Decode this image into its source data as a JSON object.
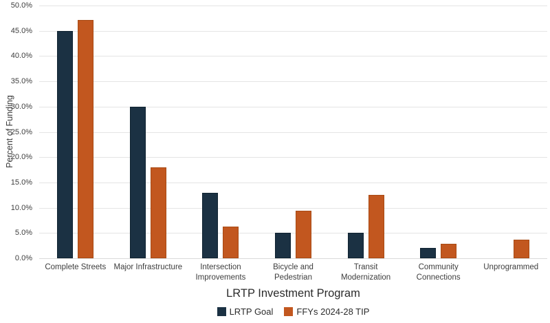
{
  "chart_data": {
    "type": "bar",
    "title": "",
    "xlabel": "LRTP Investment Program",
    "ylabel": "Percent of Funding",
    "ylim": [
      0,
      50
    ],
    "ytick_step": 5,
    "ytick_suffix": "%",
    "grid": "horizontal",
    "legend_position": "bottom",
    "categories": [
      "Complete Streets",
      "Major Infrastructure",
      "Intersection Improvements",
      "Bicycle and Pedestrian",
      "Transit Modernization",
      "Community Connections",
      "Unprogrammed"
    ],
    "category_label_lines": [
      [
        "Complete Streets"
      ],
      [
        "Major Infrastructure"
      ],
      [
        "Intersection",
        "Improvements"
      ],
      [
        "Bicycle and",
        "Pedestrian"
      ],
      [
        "Transit",
        "Modernization"
      ],
      [
        "Community",
        "Connections"
      ],
      [
        "Unprogrammed"
      ]
    ],
    "series": [
      {
        "name": "LRTP Goal",
        "color": "#1b3143",
        "border_color": "#0f2230",
        "values": [
          45.0,
          30.0,
          13.0,
          5.0,
          5.0,
          2.0,
          0.0
        ]
      },
      {
        "name": "FFYs 2024-28 TIP",
        "color": "#c2571f",
        "border_color": "#a84a14",
        "values": [
          47.2,
          18.0,
          6.3,
          9.4,
          12.5,
          2.9,
          3.7
        ]
      }
    ]
  },
  "colors": {
    "gridline": "#e4e4e4",
    "axis_text": "#3d3d3d",
    "title_text": "#2b2b2b",
    "background": "#ffffff"
  }
}
